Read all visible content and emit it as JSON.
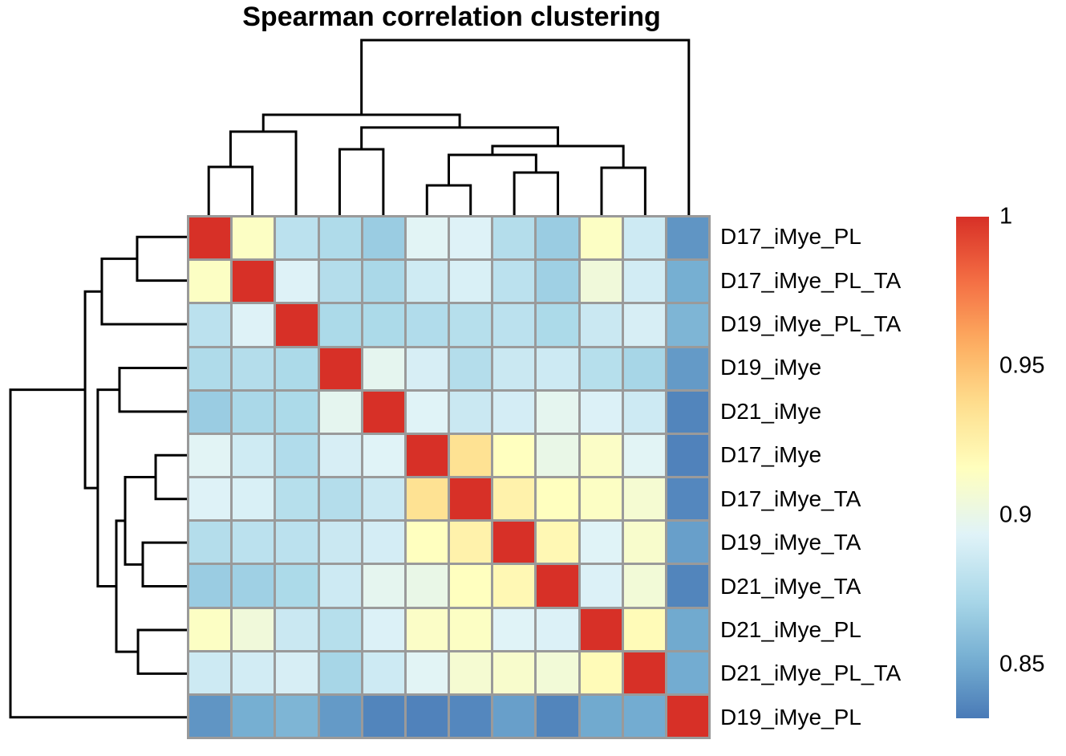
{
  "chart_data": {
    "type": "heatmap",
    "title": "Spearman correlation clustering",
    "subtitle": "",
    "labels": [
      "D17_iMye_PL",
      "D17_iMye_PL_TA",
      "D19_iMye_PL_TA",
      "D19_iMye",
      "D21_iMye",
      "D17_iMye",
      "D17_iMye_TA",
      "D19_iMye_TA",
      "D21_iMye_TA",
      "D21_iMye_PL",
      "D21_iMye_PL_TA",
      "D19_iMye_PL"
    ],
    "matrix": [
      [
        1.0,
        0.913,
        0.879,
        0.874,
        0.866,
        0.895,
        0.893,
        0.876,
        0.866,
        0.913,
        0.886,
        0.842
      ],
      [
        0.913,
        1.0,
        0.893,
        0.876,
        0.872,
        0.887,
        0.891,
        0.879,
        0.868,
        0.905,
        0.888,
        0.852
      ],
      [
        0.879,
        0.893,
        1.0,
        0.873,
        0.873,
        0.875,
        0.877,
        0.879,
        0.873,
        0.885,
        0.89,
        0.855
      ],
      [
        0.874,
        0.876,
        0.873,
        1.0,
        0.897,
        0.89,
        0.876,
        0.885,
        0.886,
        0.877,
        0.871,
        0.844
      ],
      [
        0.866,
        0.872,
        0.873,
        0.897,
        1.0,
        0.894,
        0.885,
        0.889,
        0.897,
        0.892,
        0.886,
        0.836
      ],
      [
        0.895,
        0.887,
        0.875,
        0.89,
        0.894,
        1.0,
        0.935,
        0.915,
        0.9,
        0.912,
        0.895,
        0.835
      ],
      [
        0.893,
        0.891,
        0.877,
        0.876,
        0.885,
        0.935,
        1.0,
        0.924,
        0.915,
        0.913,
        0.908,
        0.837
      ],
      [
        0.876,
        0.879,
        0.879,
        0.885,
        0.889,
        0.915,
        0.924,
        1.0,
        0.92,
        0.894,
        0.91,
        0.846
      ],
      [
        0.866,
        0.868,
        0.873,
        0.886,
        0.897,
        0.9,
        0.915,
        0.92,
        1.0,
        0.892,
        0.906,
        0.836
      ],
      [
        0.913,
        0.905,
        0.885,
        0.877,
        0.892,
        0.912,
        0.913,
        0.894,
        0.892,
        1.0,
        0.918,
        0.85
      ],
      [
        0.886,
        0.888,
        0.89,
        0.871,
        0.886,
        0.895,
        0.908,
        0.91,
        0.906,
        0.918,
        1.0,
        0.851
      ],
      [
        0.842,
        0.852,
        0.855,
        0.844,
        0.836,
        0.835,
        0.837,
        0.846,
        0.836,
        0.85,
        0.851,
        1.0
      ]
    ],
    "colormap": {
      "domain": [
        0.83,
        1.0
      ],
      "stops": [
        "#4575b4",
        "#74add1",
        "#abd9e9",
        "#e0f3f8",
        "#ffffbf",
        "#fee090",
        "#fdae61",
        "#f46d43",
        "#d73027"
      ]
    },
    "colorbar": {
      "range": [
        0.832,
        1.0
      ],
      "ticks": [
        {
          "label": "1",
          "value": 1.0
        },
        {
          "label": "0.95",
          "value": 0.95
        },
        {
          "label": "0.9",
          "value": 0.9
        },
        {
          "label": "0.85",
          "value": 0.85
        }
      ]
    },
    "dendrogram": {
      "note": "identical topology for rows and columns; leaves L0-L11 follow labels order; heights normalized to root=1",
      "merges": [
        {
          "a": "L5",
          "b": "L6",
          "h": 0.177
        },
        {
          "a": "L7",
          "b": "L8",
          "h": 0.25
        },
        {
          "a": "L9",
          "b": "L10",
          "h": 0.277
        },
        {
          "a": "L0",
          "b": "L1",
          "h": 0.282
        },
        {
          "a": "M0",
          "b": "M1",
          "h": 0.35
        },
        {
          "a": "L3",
          "b": "L4",
          "h": 0.382
        },
        {
          "a": "M4",
          "b": "M2",
          "h": 0.4
        },
        {
          "a": "M3",
          "b": "L2",
          "h": 0.482
        },
        {
          "a": "M5",
          "b": "M6",
          "h": 0.505
        },
        {
          "a": "M7",
          "b": "M8",
          "h": 0.577
        },
        {
          "a": "M9",
          "b": "L11",
          "h": 1.0
        }
      ]
    },
    "grid_color": "#9a9a9a",
    "dendro_line_color": "#000000",
    "diagonal_value": 1.0
  }
}
